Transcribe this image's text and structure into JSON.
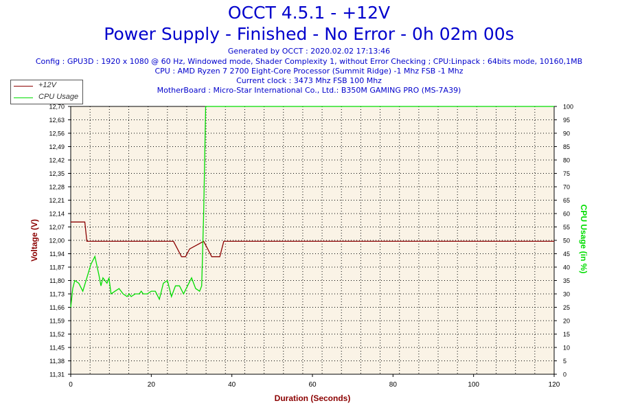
{
  "header": {
    "title_line1": "OCCT 4.5.1 - +12V",
    "title_line2": "Power Supply - Finished - No Error - 0h 02m 00s",
    "generated": "Generated by OCCT : 2020.02.02 17:13:46",
    "config": "Config : GPU3D : 1920 x 1080 @ 60 Hz, Windowed mode, Shader Complexity 1, without Error Checking ; CPU:Linpack : 64bits mode, 10160,1MB",
    "cpu": "CPU : AMD Ryzen 7 2700 Eight-Core Processor (Summit Ridge) -1 Mhz FSB -1 Mhz",
    "clock": "Current clock : 3473 Mhz FSB 100 Mhz",
    "motherboard": "MotherBoard : Micro-Star International Co., Ltd.: B350M GAMING PRO (MS-7A39)"
  },
  "colors": {
    "voltage": "#8b0000",
    "cpu": "#00dd00",
    "title": "#0000cc",
    "plot_bg": "#faf3e6",
    "grid": "#000000"
  },
  "chart_data": {
    "type": "line",
    "xlabel": "Duration (Seconds)",
    "ylabel_left": "Voltage (V)",
    "ylabel_right": "CPU Usage (in %)",
    "xlim": [
      0,
      120
    ],
    "ylim_left": [
      11.31,
      12.7
    ],
    "ylim_right": [
      0,
      100
    ],
    "x_ticks": [
      "0",
      "20",
      "40",
      "60",
      "80",
      "100",
      "120"
    ],
    "y_left_ticks": [
      "11,31",
      "11,38",
      "11,45",
      "11,52",
      "11,59",
      "11,66",
      "11,73",
      "11,80",
      "11,87",
      "11,94",
      "12,00",
      "12,07",
      "12,14",
      "12,21",
      "12,28",
      "12,35",
      "12,42",
      "12,49",
      "12,56",
      "12,63",
      "12,70"
    ],
    "y_right_ticks": [
      "0",
      "5",
      "10",
      "15",
      "20",
      "25",
      "30",
      "35",
      "40",
      "45",
      "50",
      "55",
      "60",
      "65",
      "70",
      "75",
      "80",
      "85",
      "90",
      "95",
      "100"
    ],
    "legend_position": "top-left",
    "series": [
      {
        "name": "+12V",
        "axis": "left",
        "x": [
          0,
          3.5,
          4,
          25.5,
          26.5,
          27.5,
          28,
          28.5,
          29.5,
          33,
          34,
          35,
          36,
          37,
          37.5,
          38,
          120
        ],
        "y": [
          12.1,
          12.1,
          12.0,
          12.0,
          11.96,
          11.92,
          11.92,
          11.92,
          11.96,
          12.0,
          11.96,
          11.92,
          11.92,
          11.92,
          11.96,
          12.0,
          12.0
        ]
      },
      {
        "name": "CPU Usage",
        "axis": "right",
        "x": [
          0,
          0.5,
          1,
          2,
          3,
          4,
          5,
          6,
          7,
          7.5,
          8,
          9,
          9.5,
          10,
          11,
          12,
          13,
          14,
          14.5,
          15,
          16,
          17,
          17.5,
          18,
          19,
          20,
          21,
          22,
          23,
          24,
          25,
          26,
          27,
          28,
          29,
          30,
          31,
          32,
          32.5,
          33,
          33.5,
          34,
          120
        ],
        "y": [
          25,
          32,
          35,
          34,
          31,
          36,
          41,
          44,
          37,
          33,
          36,
          34,
          36,
          30,
          31,
          32,
          30,
          29,
          30,
          29,
          30,
          30,
          31,
          30,
          30,
          31,
          31,
          28,
          34,
          35,
          29,
          33,
          33,
          30,
          33,
          36,
          32,
          31,
          33,
          60,
          100,
          100,
          100
        ]
      }
    ]
  }
}
